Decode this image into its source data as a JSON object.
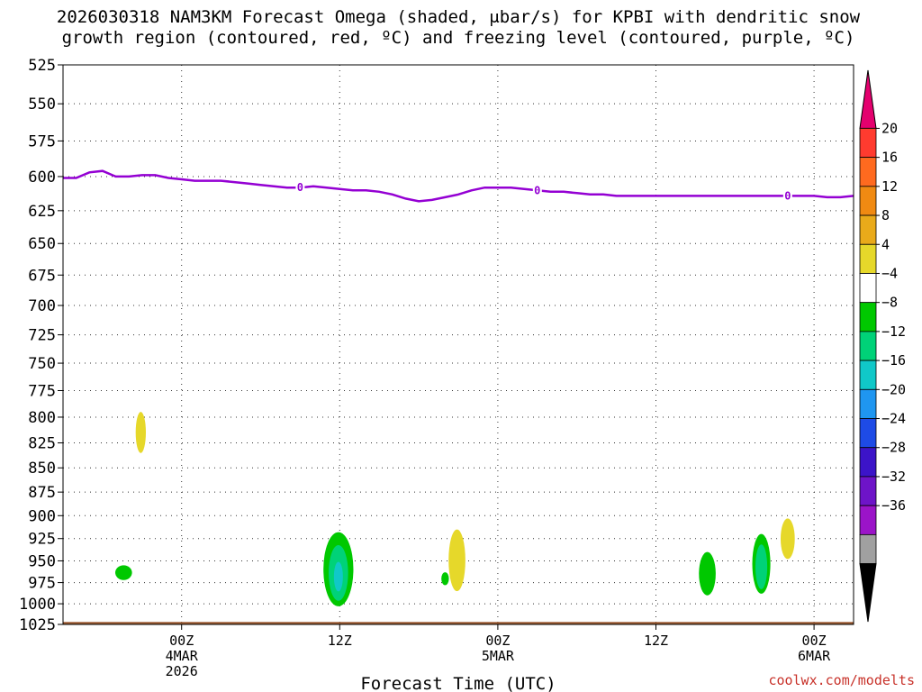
{
  "chart_data": {
    "type": "heatmap",
    "title_lines": [
      "2026030318 NAM3KM Forecast Omega (shaded, μbar/s) for KPBI with dendritic snow",
      "growth region (contoured, red, ºC) and freezing level (contoured, purple, ºC)"
    ],
    "xlabel": "Forecast Time (UTC)",
    "ylabel": "",
    "y_axis": {
      "scale": "pressure (log)",
      "range_hpa": [
        525,
        1025
      ],
      "ticks": [
        525,
        550,
        575,
        600,
        625,
        650,
        675,
        700,
        725,
        750,
        775,
        800,
        825,
        850,
        875,
        900,
        925,
        950,
        975,
        1000,
        1025
      ],
      "grid": true
    },
    "x_axis": {
      "range_hours": [
        -3,
        57
      ],
      "grid": true,
      "ticks": [
        {
          "hours": 6,
          "lines": [
            "00Z",
            "4MAR",
            "2026"
          ]
        },
        {
          "hours": 18,
          "lines": [
            "12Z"
          ]
        },
        {
          "hours": 30,
          "lines": [
            "00Z",
            "5MAR"
          ]
        },
        {
          "hours": 42,
          "lines": [
            "12Z"
          ]
        },
        {
          "hours": 54,
          "lines": [
            "00Z",
            "6MAR"
          ]
        }
      ]
    },
    "freezing_level": {
      "value_label": "0",
      "label_hours": [
        15,
        33,
        52
      ],
      "points": [
        [
          -3,
          601
        ],
        [
          -2,
          601
        ],
        [
          -1,
          597
        ],
        [
          0,
          596
        ],
        [
          1,
          600
        ],
        [
          2,
          600
        ],
        [
          3,
          599
        ],
        [
          4,
          599
        ],
        [
          5,
          601
        ],
        [
          6,
          602
        ],
        [
          7,
          603
        ],
        [
          8,
          603
        ],
        [
          9,
          603
        ],
        [
          10,
          604
        ],
        [
          11,
          605
        ],
        [
          12,
          606
        ],
        [
          13,
          607
        ],
        [
          14,
          608
        ],
        [
          15,
          608
        ],
        [
          16,
          607
        ],
        [
          17,
          608
        ],
        [
          18,
          609
        ],
        [
          19,
          610
        ],
        [
          20,
          610
        ],
        [
          21,
          611
        ],
        [
          22,
          613
        ],
        [
          23,
          616
        ],
        [
          24,
          618
        ],
        [
          25,
          617
        ],
        [
          26,
          615
        ],
        [
          27,
          613
        ],
        [
          28,
          610
        ],
        [
          29,
          608
        ],
        [
          30,
          608
        ],
        [
          31,
          608
        ],
        [
          32,
          609
        ],
        [
          33,
          610
        ],
        [
          34,
          611
        ],
        [
          35,
          611
        ],
        [
          36,
          612
        ],
        [
          37,
          613
        ],
        [
          38,
          613
        ],
        [
          39,
          614
        ],
        [
          40,
          614
        ],
        [
          41,
          614
        ],
        [
          42,
          614
        ],
        [
          43,
          614
        ],
        [
          44,
          614
        ],
        [
          45,
          614
        ],
        [
          46,
          614
        ],
        [
          47,
          614
        ],
        [
          48,
          614
        ],
        [
          49,
          614
        ],
        [
          50,
          614
        ],
        [
          51,
          614
        ],
        [
          52,
          614
        ],
        [
          53,
          614
        ],
        [
          54,
          614
        ],
        [
          55,
          615
        ],
        [
          56,
          615
        ],
        [
          57,
          614
        ]
      ]
    },
    "omega_features": [
      {
        "hours": 2.9,
        "p_center": 815,
        "value": 5,
        "width_h": 0.5,
        "p_top": 795,
        "p_bottom": 835
      },
      {
        "hours": 1.6,
        "p_center": 963,
        "value": -6,
        "width_h": 1.0,
        "p_top": 955,
        "p_bottom": 972
      },
      {
        "hours": 17.9,
        "p_center": 960,
        "value": -14,
        "width_h": 2.0,
        "p_top": 918,
        "p_bottom": 1003
      },
      {
        "hours": 26.0,
        "p_center": 968,
        "value": -5,
        "width_h": 0.3,
        "p_top": 963,
        "p_bottom": 978
      },
      {
        "hours": 26.9,
        "p_center": 945,
        "value": 5,
        "width_h": 1.0,
        "p_top": 915,
        "p_bottom": 985
      },
      {
        "hours": 45.9,
        "p_center": 968,
        "value": -7,
        "width_h": 1.0,
        "p_top": 940,
        "p_bottom": 990
      },
      {
        "hours": 50.0,
        "p_center": 955,
        "value": -9,
        "width_h": 1.1,
        "p_top": 920,
        "p_bottom": 988
      },
      {
        "hours": 52.0,
        "p_center": 925,
        "value": 6,
        "width_h": 0.8,
        "p_top": 903,
        "p_bottom": 948
      }
    ],
    "terrain": {
      "color": "#9b5a32",
      "surface_hpa": 1022
    },
    "colorbar": {
      "units": "μbar/s",
      "levels": [
        -36,
        -32,
        -28,
        -24,
        -20,
        -16,
        -12,
        -8,
        -4,
        4,
        8,
        12,
        16,
        20
      ],
      "tick_labels": [
        "20",
        "16",
        "12",
        "8",
        "4",
        "−4",
        "−8",
        "−12",
        "−16",
        "−20",
        "−24",
        "−28",
        "−32",
        "−36"
      ],
      "colors_top_to_bottom": [
        "#e4006e",
        "#ff3b2f",
        "#ff6a1f",
        "#f08a12",
        "#e9aa1a",
        "#e6d82a",
        "#ffffff",
        "#00c800",
        "#00d278",
        "#10c8c8",
        "#1f96f0",
        "#1e4be6",
        "#3c14c8",
        "#6e14c8",
        "#9b14c8",
        "#a0a0a0",
        "#000000"
      ]
    }
  },
  "credit": "coolwx.com/modelts"
}
